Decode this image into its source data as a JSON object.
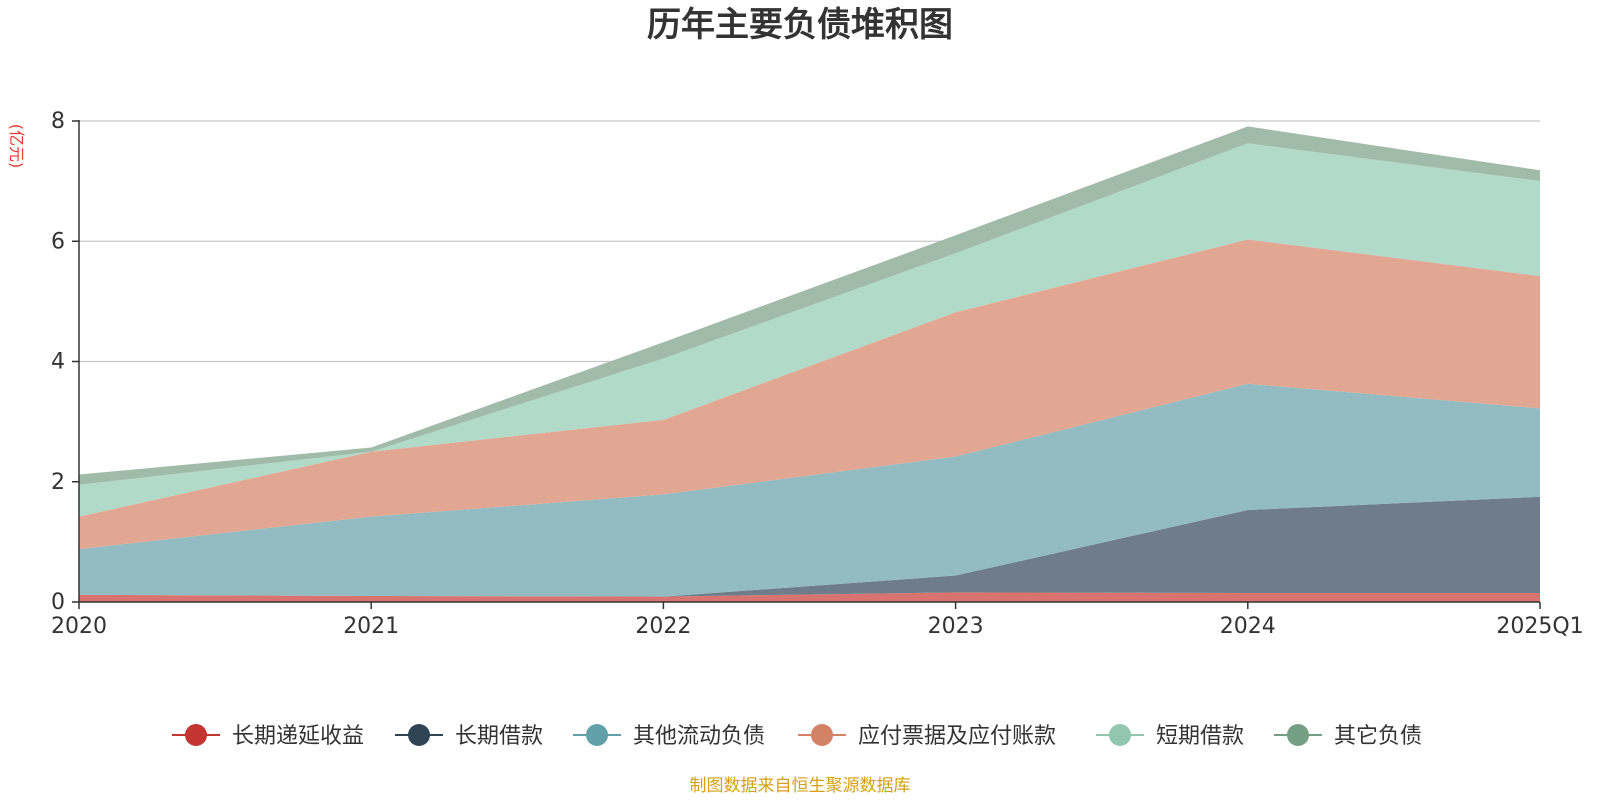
{
  "chart_data": {
    "type": "area",
    "stacked": true,
    "title": "历年主要负债堆积图",
    "unit_label": "(亿元)",
    "categories": [
      "2020",
      "2021",
      "2022",
      "2023",
      "2024",
      "2025Q1"
    ],
    "ylim": [
      0,
      8
    ],
    "yticks": [
      0,
      2,
      4,
      6,
      8
    ],
    "ytick_labels": [
      "0",
      "2",
      "4",
      "6",
      "8"
    ],
    "grid": true,
    "legend_position": "bottom",
    "series": [
      {
        "name": "长期递延收益",
        "color": "#c23531",
        "fill": "#d9736f",
        "values": [
          0.12,
          0.1,
          0.09,
          0.16,
          0.15,
          0.15
        ]
      },
      {
        "name": "长期借款",
        "color": "#2f4554",
        "fill": "#6e7d89",
        "values": [
          0,
          0,
          0,
          0.28,
          1.38,
          1.6
        ]
      },
      {
        "name": "其他流动负债",
        "color": "#61a0a8",
        "fill": "#93bcc2",
        "values": [
          0.76,
          1.32,
          1.7,
          1.98,
          2.1,
          1.47
        ]
      },
      {
        "name": "应付票据及应付账款",
        "color": "#d48265",
        "fill": "#e1a793",
        "values": [
          0.54,
          1.08,
          1.24,
          2.4,
          2.4,
          2.2
        ]
      },
      {
        "name": "短期借款",
        "color": "#91c7ae",
        "fill": "#b2dac8",
        "values": [
          0.53,
          0,
          1.02,
          0.98,
          1.6,
          1.58
        ]
      },
      {
        "name": "其它负债",
        "color": "#749f83",
        "fill": "#a1bba9",
        "values": [
          0.17,
          0.07,
          0.27,
          0.3,
          0.28,
          0.18
        ]
      }
    ]
  },
  "source_text": "制图数据来自恒生聚源数据库"
}
